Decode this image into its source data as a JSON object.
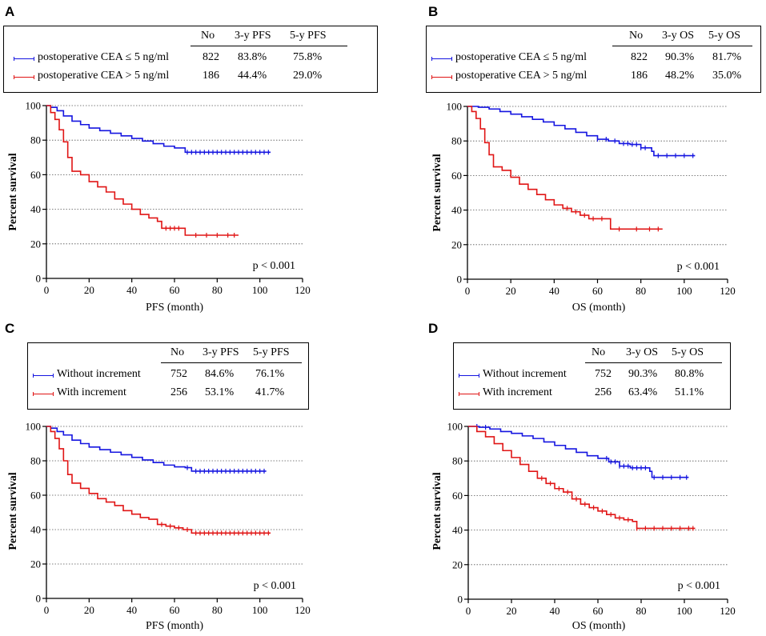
{
  "chart_data": [
    {
      "panel": "A",
      "type": "line",
      "subtype": "kaplan-meier",
      "xlabel": "PFS (month)",
      "ylabel": "Percent survival",
      "xlim": [
        0,
        120
      ],
      "ylim": [
        0,
        100
      ],
      "xticks": [
        "0",
        "20",
        "40",
        "60",
        "80",
        "100",
        "120"
      ],
      "yticks": [
        "0",
        "20",
        "40",
        "60",
        "80",
        "100"
      ],
      "pvalue": "p < 0.001",
      "table_headers": [
        "No",
        "3-y PFS",
        "5-y PFS"
      ],
      "series": [
        {
          "name": "postoperative CEA ≤ 5 ng/ml",
          "color": "#1515e0",
          "no": "822",
          "y3": "83.8%",
          "y5": "75.8%",
          "x": [
            0,
            2,
            5,
            8,
            12,
            16,
            20,
            25,
            30,
            35,
            40,
            45,
            50,
            55,
            60,
            65,
            70,
            80,
            90,
            100,
            105
          ],
          "y": [
            100,
            99,
            97,
            94,
            91,
            89,
            87,
            85.5,
            84,
            82.5,
            81,
            79.5,
            78,
            76.5,
            75.5,
            73,
            73,
            73,
            73,
            73,
            73
          ],
          "censor": [
            66,
            68,
            70,
            72,
            74,
            76,
            78,
            80,
            82,
            84,
            86,
            88,
            90,
            92,
            94,
            96,
            98,
            100,
            102,
            104
          ]
        },
        {
          "name": "postoperative CEA > 5 ng/ml",
          "color": "#e01515",
          "no": "186",
          "y3": "44.4%",
          "y5": "29.0%",
          "x": [
            0,
            2,
            4,
            6,
            8,
            10,
            12,
            16,
            20,
            24,
            28,
            32,
            36,
            40,
            44,
            48,
            52,
            54,
            58,
            64,
            65,
            70,
            80,
            90
          ],
          "y": [
            100,
            96,
            92,
            86,
            79,
            70,
            62,
            60,
            56,
            53,
            50,
            46,
            43,
            40,
            37,
            35,
            33,
            29,
            29,
            29,
            25,
            25,
            25,
            25
          ],
          "censor": [
            56,
            58,
            60,
            62,
            70,
            75,
            80,
            85,
            88
          ]
        }
      ]
    },
    {
      "panel": "B",
      "type": "line",
      "subtype": "kaplan-meier",
      "xlabel": "OS (month)",
      "ylabel": "Percent survival",
      "xlim": [
        0,
        120
      ],
      "ylim": [
        0,
        100
      ],
      "xticks": [
        "0",
        "20",
        "40",
        "60",
        "80",
        "100",
        "120"
      ],
      "yticks": [
        "0",
        "20",
        "40",
        "60",
        "80",
        "100"
      ],
      "pvalue": "p < 0.001",
      "table_headers": [
        "No",
        "3-y OS",
        "5-y OS"
      ],
      "series": [
        {
          "name": "postoperative CEA ≤ 5 ng/ml",
          "color": "#1515e0",
          "no": "822",
          "y3": "90.3%",
          "y5": "81.7%",
          "x": [
            0,
            5,
            10,
            15,
            20,
            25,
            30,
            35,
            40,
            45,
            50,
            55,
            60,
            65,
            70,
            75,
            80,
            85,
            86,
            90,
            100,
            105
          ],
          "y": [
            100,
            99.5,
            98.5,
            97,
            95.5,
            94,
            92.5,
            91,
            89,
            87,
            85,
            83,
            81,
            80,
            78.5,
            78,
            76,
            74,
            71.5,
            71.5,
            71.5,
            71.5
          ],
          "censor": [
            60,
            64,
            68,
            72,
            74,
            76,
            78,
            80,
            82,
            88,
            92,
            96,
            100,
            104
          ]
        },
        {
          "name": "postoperative CEA > 5 ng/ml",
          "color": "#e01515",
          "no": "186",
          "y3": "48.2%",
          "y5": "35.0%",
          "x": [
            0,
            2,
            4,
            6,
            8,
            10,
            12,
            16,
            20,
            24,
            28,
            32,
            36,
            40,
            44,
            48,
            52,
            56,
            60,
            64,
            66,
            70,
            80,
            90
          ],
          "y": [
            100,
            97,
            93,
            87,
            79,
            72,
            65,
            63,
            59,
            55,
            52,
            49,
            46,
            43,
            41,
            39,
            37,
            35,
            35,
            35,
            29,
            29,
            29,
            29
          ],
          "censor": [
            46,
            50,
            54,
            58,
            62,
            70,
            78,
            84,
            88
          ]
        }
      ]
    },
    {
      "panel": "C",
      "type": "line",
      "subtype": "kaplan-meier",
      "xlabel": "PFS (month)",
      "ylabel": "Percent survival",
      "xlim": [
        0,
        120
      ],
      "ylim": [
        0,
        100
      ],
      "xticks": [
        "0",
        "20",
        "40",
        "60",
        "80",
        "100",
        "120"
      ],
      "yticks": [
        "0",
        "20",
        "40",
        "60",
        "80",
        "100"
      ],
      "pvalue": "p < 0.001",
      "table_headers": [
        "No",
        "3-y PFS",
        "5-y PFS"
      ],
      "series": [
        {
          "name": "Without increment",
          "color": "#1515e0",
          "no": "752",
          "y3": "84.6%",
          "y5": "76.1%",
          "x": [
            0,
            2,
            5,
            8,
            12,
            16,
            20,
            25,
            30,
            35,
            40,
            45,
            50,
            55,
            60,
            65,
            68,
            70,
            80,
            90,
            100,
            103
          ],
          "y": [
            100,
            99,
            97,
            95,
            92,
            90,
            88,
            86.5,
            85,
            83.5,
            82,
            80.5,
            79,
            77.5,
            76.5,
            76,
            74,
            74,
            74,
            74,
            74,
            74
          ],
          "censor": [
            66,
            70,
            72,
            74,
            76,
            78,
            80,
            82,
            84,
            86,
            88,
            90,
            92,
            94,
            96,
            98,
            100,
            102
          ]
        },
        {
          "name": "With increment",
          "color": "#e01515",
          "no": "256",
          "y3": "53.1%",
          "y5": "41.7%",
          "x": [
            0,
            2,
            4,
            6,
            8,
            10,
            12,
            16,
            20,
            24,
            28,
            32,
            36,
            40,
            44,
            48,
            52,
            56,
            60,
            64,
            68,
            70,
            80,
            90,
            100,
            105
          ],
          "y": [
            100,
            97,
            93,
            87,
            80,
            72,
            67,
            64,
            61,
            58,
            56,
            54,
            51,
            49,
            47,
            46,
            43,
            42,
            41,
            40,
            38,
            38,
            38,
            38,
            38,
            38
          ],
          "censor": [
            54,
            58,
            62,
            66,
            70,
            72,
            74,
            76,
            78,
            80,
            82,
            84,
            86,
            88,
            90,
            92,
            94,
            96,
            98,
            100,
            102,
            104
          ]
        }
      ]
    },
    {
      "panel": "D",
      "type": "line",
      "subtype": "kaplan-meier",
      "xlabel": "OS (month)",
      "ylabel": "Percent survival",
      "xlim": [
        0,
        120
      ],
      "ylim": [
        0,
        100
      ],
      "xticks": [
        "0",
        "20",
        "40",
        "60",
        "80",
        "100",
        "120"
      ],
      "yticks": [
        "0",
        "20",
        "40",
        "60",
        "80",
        "100"
      ],
      "pvalue": "p < 0.001",
      "table_headers": [
        "No",
        "3-y OS",
        "5-y OS"
      ],
      "series": [
        {
          "name": "Without increment",
          "color": "#1515e0",
          "no": "752",
          "y3": "90.3%",
          "y5": "80.8%",
          "x": [
            0,
            5,
            10,
            15,
            20,
            25,
            30,
            35,
            40,
            45,
            50,
            55,
            60,
            65,
            70,
            75,
            80,
            84,
            85,
            90,
            100,
            102
          ],
          "y": [
            100,
            99.5,
            98.5,
            97,
            96,
            94.5,
            93,
            91,
            89,
            87,
            85,
            83,
            81.5,
            79.5,
            77,
            76,
            76,
            74,
            70.5,
            70.5,
            70.5,
            70.5
          ],
          "censor": [
            4,
            8,
            64,
            66,
            68,
            70,
            72,
            74,
            76,
            78,
            80,
            82,
            86,
            90,
            94,
            98,
            101
          ]
        },
        {
          "name": "With increment",
          "color": "#e01515",
          "no": "256",
          "y3": "63.4%",
          "y5": "51.1%",
          "x": [
            0,
            4,
            8,
            12,
            16,
            20,
            24,
            28,
            32,
            36,
            40,
            44,
            48,
            52,
            56,
            60,
            64,
            68,
            72,
            76,
            78,
            80,
            90,
            100,
            105
          ],
          "y": [
            100,
            97,
            94,
            90,
            86,
            82,
            78,
            74,
            70,
            67,
            64,
            62,
            58,
            55,
            53,
            51,
            49,
            47,
            46,
            45,
            41,
            41,
            41,
            41,
            41
          ],
          "censor": [
            34,
            38,
            42,
            46,
            50,
            54,
            58,
            62,
            66,
            70,
            74,
            78,
            82,
            86,
            90,
            94,
            98,
            102,
            104
          ]
        }
      ]
    }
  ]
}
